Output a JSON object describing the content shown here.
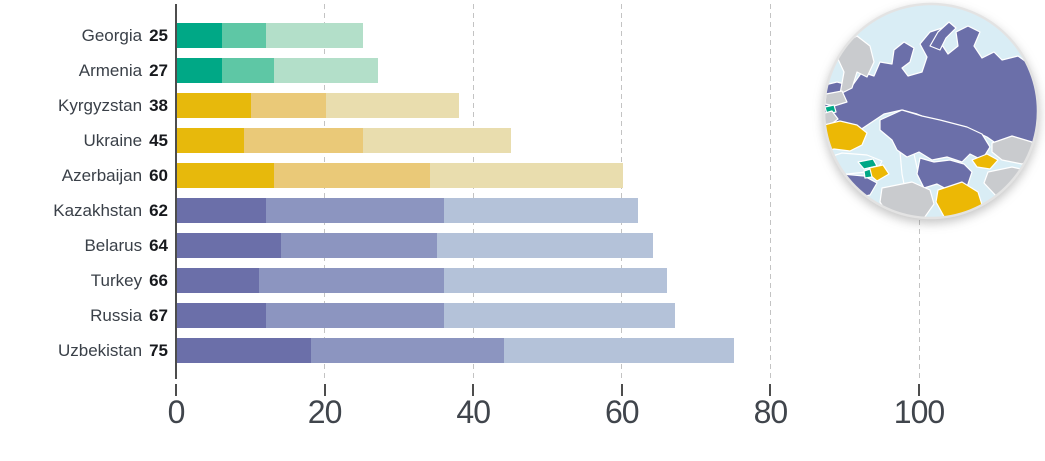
{
  "chart_data": {
    "type": "bar",
    "orientation": "horizontal",
    "stacked": true,
    "title": "",
    "xlabel": "",
    "ylabel": "",
    "xlim": [
      0,
      100
    ],
    "x_ticks": [
      0,
      20,
      40,
      60,
      80,
      100
    ],
    "grid": "dashed-vertical",
    "legend": "none",
    "rows": [
      {
        "country": "Georgia",
        "total": 25,
        "group": "teal",
        "segments": [
          6,
          6,
          13
        ]
      },
      {
        "country": "Armenia",
        "total": 27,
        "group": "teal",
        "segments": [
          6,
          7,
          14
        ]
      },
      {
        "country": "Kyrgyzstan",
        "total": 38,
        "group": "yellow",
        "segments": [
          10,
          10,
          18
        ]
      },
      {
        "country": "Ukraine",
        "total": 45,
        "group": "yellow",
        "segments": [
          9,
          16,
          20
        ]
      },
      {
        "country": "Azerbaijan",
        "total": 60,
        "group": "yellow",
        "segments": [
          13,
          21,
          26
        ]
      },
      {
        "country": "Kazakhstan",
        "total": 62,
        "group": "purple",
        "segments": [
          12,
          24,
          26
        ]
      },
      {
        "country": "Belarus",
        "total": 64,
        "group": "purple",
        "segments": [
          14,
          21,
          29
        ]
      },
      {
        "country": "Turkey",
        "total": 66,
        "group": "purple",
        "segments": [
          11,
          25,
          30
        ]
      },
      {
        "country": "Russia",
        "total": 67,
        "group": "purple",
        "segments": [
          12,
          24,
          31
        ]
      },
      {
        "country": "Uzbekistan",
        "total": 75,
        "group": "purple",
        "segments": [
          18,
          26,
          31
        ]
      }
    ]
  },
  "palette": {
    "teal": [
      "#00a886",
      "#5ec7a5",
      "#b3dfc9"
    ],
    "yellow": [
      "#e7b90c",
      "#eac978",
      "#e9ddae"
    ],
    "purple": [
      "#6b6fa9",
      "#8c95c0",
      "#b4c2d9"
    ]
  },
  "axis": {
    "line_color": "#4d4d4d",
    "grid_color": "#c3c3c3",
    "tick_label_color": "#40454c"
  },
  "labels": {
    "name_color": "#3a4048",
    "value_color": "#17191d"
  },
  "map_inset": {
    "water": "#d9edf5",
    "other_land": "#c9cbce",
    "border": "#ffffff",
    "rim": "#e3e3e3",
    "regions": [
      {
        "name": "russia",
        "group": "purple"
      },
      {
        "name": "kazakhstan",
        "group": "purple"
      },
      {
        "name": "uzbekistan-area",
        "group": "purple"
      },
      {
        "name": "turkey",
        "group": "purple"
      },
      {
        "name": "belarus-area",
        "group": "purple"
      },
      {
        "name": "ukraine",
        "group": "yellow"
      },
      {
        "name": "kyrgyzstan",
        "group": "yellow"
      },
      {
        "name": "azerbaijan",
        "group": "yellow"
      },
      {
        "name": "afghan-area",
        "group": "yellow"
      },
      {
        "name": "georgia",
        "group": "green"
      },
      {
        "name": "armenia",
        "group": "green"
      },
      {
        "name": "small-green-region",
        "group": "green"
      },
      {
        "name": "scandinavia",
        "group": "other"
      },
      {
        "name": "baltic-area",
        "group": "other"
      },
      {
        "name": "poland-area",
        "group": "other"
      },
      {
        "name": "mongolia-area",
        "group": "other"
      },
      {
        "name": "china-area",
        "group": "other"
      },
      {
        "name": "iran-area",
        "group": "other"
      }
    ],
    "group_colors": {
      "purple": "#6b6fa9",
      "yellow": "#ecb805",
      "green": "#00a886",
      "other": "#c9cbce"
    }
  }
}
